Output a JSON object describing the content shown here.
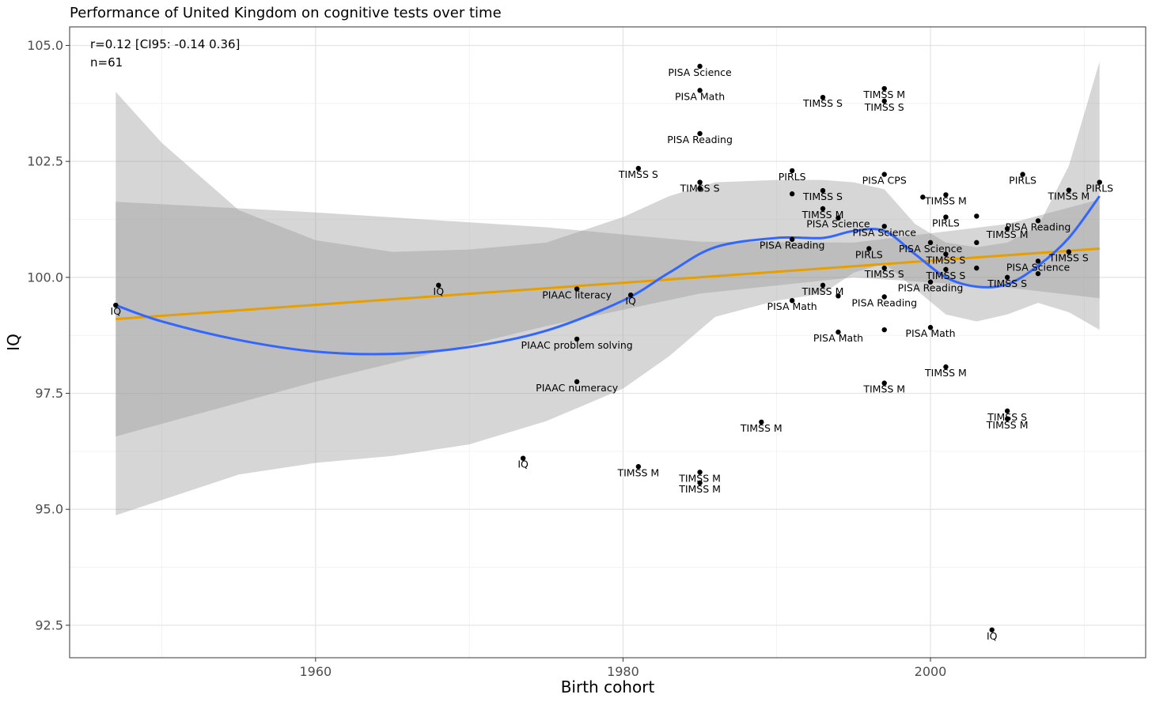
{
  "chart_data": {
    "type": "scatter",
    "title": "Performance of United Kingdom on cognitive tests over time",
    "xlabel": "Birth cohort",
    "ylabel": "IQ",
    "xlim": [
      1944,
      2014
    ],
    "ylim": [
      91.8,
      105.4
    ],
    "x_ticks": [
      1960,
      1980,
      2000
    ],
    "y_ticks": [
      "92.5",
      "95.0",
      "97.5",
      "100.0",
      "102.5",
      "105.0"
    ],
    "grid": true,
    "annotation": [
      "r=0.12 [CI95: -0.14 0.36]",
      "n=61"
    ],
    "points": [
      {
        "x": 1947,
        "y": 99.4,
        "label": "IQ"
      },
      {
        "x": 1968,
        "y": 99.83,
        "label": "IQ"
      },
      {
        "x": 1973.5,
        "y": 96.1,
        "label": "IQ"
      },
      {
        "x": 1977,
        "y": 99.75,
        "label": "PIAAC literacy"
      },
      {
        "x": 1977,
        "y": 98.67,
        "label": "PIAAC problem solving"
      },
      {
        "x": 1977,
        "y": 97.75,
        "label": "PIAAC numeracy"
      },
      {
        "x": 1980.5,
        "y": 99.62,
        "label": "IQ"
      },
      {
        "x": 1981,
        "y": 102.35,
        "label": "TIMSS S"
      },
      {
        "x": 1981,
        "y": 95.92,
        "label": "TIMSS M"
      },
      {
        "x": 1985,
        "y": 104.55,
        "label": "PISA Science"
      },
      {
        "x": 1985,
        "y": 104.03,
        "label": "PISA Math"
      },
      {
        "x": 1985,
        "y": 103.1,
        "label": "PISA Reading"
      },
      {
        "x": 1985,
        "y": 102.05,
        "label": "TIMSS S"
      },
      {
        "x": 1985,
        "y": 101.92,
        "label": ""
      },
      {
        "x": 1985,
        "y": 95.8,
        "label": "TIMSS M"
      },
      {
        "x": 1985,
        "y": 95.57,
        "label": "TIMSS M"
      },
      {
        "x": 1989,
        "y": 96.88,
        "label": "TIMSS M"
      },
      {
        "x": 1991,
        "y": 102.3,
        "label": "PIRLS"
      },
      {
        "x": 1991,
        "y": 101.8,
        "label": ""
      },
      {
        "x": 1991,
        "y": 100.82,
        "label": "PISA Reading"
      },
      {
        "x": 1991,
        "y": 99.5,
        "label": "PISA Math"
      },
      {
        "x": 1993,
        "y": 103.88,
        "label": "TIMSS S"
      },
      {
        "x": 1993,
        "y": 101.87,
        "label": "TIMSS S"
      },
      {
        "x": 1993,
        "y": 101.48,
        "label": "TIMSS M"
      },
      {
        "x": 1993,
        "y": 99.83,
        "label": "TIMSS M"
      },
      {
        "x": 1994,
        "y": 101.28,
        "label": "PISA Science"
      },
      {
        "x": 1994,
        "y": 99.6,
        "label": ""
      },
      {
        "x": 1994,
        "y": 98.82,
        "label": "PISA Math"
      },
      {
        "x": 1996,
        "y": 100.62,
        "label": "PIRLS"
      },
      {
        "x": 1997,
        "y": 104.07,
        "label": "TIMSS M"
      },
      {
        "x": 1997,
        "y": 103.8,
        "label": "TIMSS S"
      },
      {
        "x": 1997,
        "y": 102.22,
        "label": "PISA CPS"
      },
      {
        "x": 1997,
        "y": 101.1,
        "label": "PISA Science"
      },
      {
        "x": 1997,
        "y": 100.2,
        "label": "TIMSS S"
      },
      {
        "x": 1997,
        "y": 99.58,
        "label": "PISA Reading"
      },
      {
        "x": 1997,
        "y": 98.87,
        "label": ""
      },
      {
        "x": 1997,
        "y": 97.72,
        "label": "TIMSS M"
      },
      {
        "x": 1999.5,
        "y": 101.73,
        "label": ""
      },
      {
        "x": 2000,
        "y": 100.75,
        "label": "PISA Science"
      },
      {
        "x": 2000,
        "y": 99.9,
        "label": "PISA Reading"
      },
      {
        "x": 2000,
        "y": 98.92,
        "label": "PISA Math"
      },
      {
        "x": 2001,
        "y": 101.78,
        "label": "TIMSS M"
      },
      {
        "x": 2001,
        "y": 101.3,
        "label": "PIRLS"
      },
      {
        "x": 2001,
        "y": 100.5,
        "label": "TIMSS S"
      },
      {
        "x": 2001,
        "y": 100.17,
        "label": "TIMSS S"
      },
      {
        "x": 2001,
        "y": 98.07,
        "label": "TIMSS M"
      },
      {
        "x": 2003,
        "y": 101.32,
        "label": ""
      },
      {
        "x": 2003,
        "y": 100.75,
        "label": ""
      },
      {
        "x": 2003,
        "y": 100.2,
        "label": ""
      },
      {
        "x": 2004,
        "y": 92.4,
        "label": "IQ"
      },
      {
        "x": 2005,
        "y": 101.05,
        "label": "TIMSS M"
      },
      {
        "x": 2005,
        "y": 100.0,
        "label": "TIMSS S"
      },
      {
        "x": 2005,
        "y": 97.12,
        "label": "TIMSS S"
      },
      {
        "x": 2005,
        "y": 96.95,
        "label": "TIMSS M"
      },
      {
        "x": 2006,
        "y": 102.22,
        "label": "PIRLS"
      },
      {
        "x": 2007,
        "y": 101.22,
        "label": "PISA Reading"
      },
      {
        "x": 2007,
        "y": 100.35,
        "label": "PISA Science"
      },
      {
        "x": 2007,
        "y": 100.08,
        "label": ""
      },
      {
        "x": 2009,
        "y": 101.88,
        "label": "TIMSS M"
      },
      {
        "x": 2009,
        "y": 100.55,
        "label": "TIMSS S"
      },
      {
        "x": 2011,
        "y": 102.05,
        "label": "PIRLS"
      }
    ],
    "series": [
      {
        "style": "linear-fit",
        "color": "#e69f00",
        "x": [
          1947,
          2011
        ],
        "y": [
          99.1,
          100.62
        ]
      },
      {
        "style": "linear-ci",
        "color": "#999999",
        "x": [
          1947,
          1960,
          1975,
          1985,
          1995,
          2005,
          2011
        ],
        "lower": [
          96.57,
          97.75,
          98.95,
          99.65,
          100.0,
          99.78,
          99.55
        ],
        "upper": [
          101.63,
          101.4,
          101.08,
          100.77,
          100.75,
          101.15,
          101.68
        ]
      },
      {
        "style": "loess",
        "color": "#3366ff",
        "x": [
          1947,
          1950,
          1955,
          1960,
          1965,
          1970,
          1975,
          1980,
          1983,
          1986,
          1990,
          1993,
          1995,
          1997,
          1999,
          2001,
          2003,
          2005,
          2007,
          2009,
          2011
        ],
        "y": [
          99.4,
          99.05,
          98.65,
          98.4,
          98.35,
          98.5,
          98.85,
          99.5,
          100.1,
          100.65,
          100.85,
          100.85,
          101.0,
          101.0,
          100.5,
          100.0,
          99.8,
          99.85,
          100.25,
          100.85,
          101.75
        ]
      },
      {
        "style": "loess-ci",
        "color": "#999999",
        "x": [
          1947,
          1950,
          1955,
          1960,
          1965,
          1970,
          1975,
          1980,
          1983,
          1986,
          1990,
          1993,
          1995,
          1997,
          1999,
          2001,
          2003,
          2005,
          2007,
          2009,
          2011
        ],
        "lower": [
          94.87,
          95.2,
          95.75,
          96.0,
          96.15,
          96.4,
          96.9,
          97.6,
          98.3,
          99.15,
          99.5,
          99.65,
          100.1,
          100.3,
          99.75,
          99.2,
          99.05,
          99.2,
          99.45,
          99.25,
          98.87
        ],
        "upper": [
          104.0,
          102.9,
          101.45,
          100.8,
          100.55,
          100.6,
          100.75,
          101.3,
          101.75,
          102.05,
          102.1,
          102.1,
          102.05,
          101.9,
          101.15,
          100.75,
          100.65,
          100.75,
          101.1,
          102.4,
          104.65
        ]
      }
    ]
  }
}
